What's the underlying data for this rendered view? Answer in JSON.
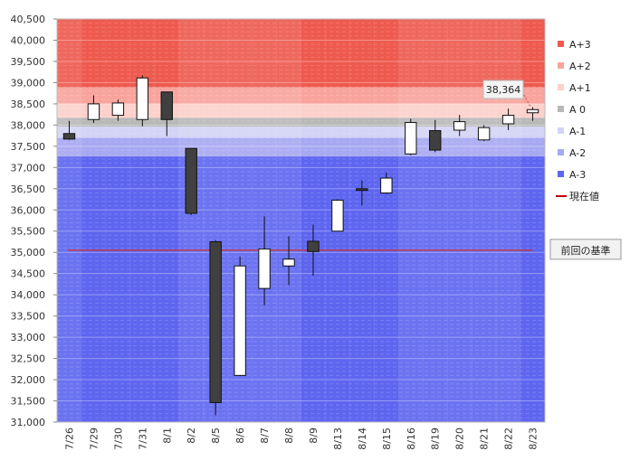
{
  "chart_data": {
    "type": "candlestick",
    "ylim": [
      31000,
      40500
    ],
    "y_ticks": [
      31000,
      31500,
      32000,
      32500,
      33000,
      33500,
      34000,
      34500,
      35000,
      35500,
      36000,
      36500,
      37000,
      37500,
      38000,
      38500,
      39000,
      39500,
      40000,
      40500
    ],
    "y_tick_labels": [
      "31,000",
      "31,500",
      "32,000",
      "32,500",
      "33,000",
      "33,500",
      "34,000",
      "34,500",
      "35,000",
      "35,500",
      "36,000",
      "36,500",
      "37,000",
      "37,500",
      "38,000",
      "38,500",
      "39,000",
      "39,500",
      "40,000",
      "40,500"
    ],
    "categories": [
      "7/26",
      "7/29",
      "7/30",
      "7/31",
      "8/1",
      "8/2",
      "8/5",
      "8/6",
      "8/7",
      "8/8",
      "8/9",
      "8/13",
      "8/14",
      "8/15",
      "8/16",
      "8/19",
      "8/20",
      "8/21",
      "8/22",
      "8/23"
    ],
    "candles": [
      {
        "open": 37800,
        "high": 38100,
        "low": 37650,
        "close": 37670
      },
      {
        "open": 38130,
        "high": 38700,
        "low": 38050,
        "close": 38500
      },
      {
        "open": 38230,
        "high": 38600,
        "low": 38100,
        "close": 38520
      },
      {
        "open": 38130,
        "high": 39170,
        "low": 37970,
        "close": 39110
      },
      {
        "open": 38780,
        "high": 38790,
        "low": 37740,
        "close": 38130
      },
      {
        "open": 37450,
        "high": 37450,
        "low": 35880,
        "close": 35920
      },
      {
        "open": 35250,
        "high": 35290,
        "low": 31160,
        "close": 31460
      },
      {
        "open": 32100,
        "high": 34900,
        "low": 32080,
        "close": 34680
      },
      {
        "open": 34150,
        "high": 35850,
        "low": 33750,
        "close": 35080
      },
      {
        "open": 34680,
        "high": 35380,
        "low": 34230,
        "close": 34840
      },
      {
        "open": 35260,
        "high": 35650,
        "low": 34450,
        "close": 35020
      },
      {
        "open": 35500,
        "high": 36250,
        "low": 35500,
        "close": 36230
      },
      {
        "open": 36500,
        "high": 36700,
        "low": 36100,
        "close": 36460
      },
      {
        "open": 36400,
        "high": 36880,
        "low": 36380,
        "close": 36750
      },
      {
        "open": 37320,
        "high": 38150,
        "low": 37290,
        "close": 38060
      },
      {
        "open": 37870,
        "high": 38120,
        "low": 37360,
        "close": 37410
      },
      {
        "open": 37880,
        "high": 38240,
        "low": 37740,
        "close": 38080
      },
      {
        "open": 37650,
        "high": 38000,
        "low": 37620,
        "close": 37940
      },
      {
        "open": 38030,
        "high": 38390,
        "low": 37880,
        "close": 38230
      },
      {
        "open": 38290,
        "high": 38420,
        "low": 38100,
        "close": 38364
      }
    ],
    "zones": [
      {
        "name": "A+3",
        "from": 38890,
        "to": 40500,
        "color": "#ee5a4f"
      },
      {
        "name": "A+2",
        "from": 38500,
        "to": 38890,
        "color": "#f8a49d"
      },
      {
        "name": "A+1",
        "from": 38170,
        "to": 38500,
        "color": "#fcd0cb"
      },
      {
        "name": "A 0",
        "from": 37960,
        "to": 38170,
        "color": "#b8b8b8"
      },
      {
        "name": "A-1",
        "from": 37700,
        "to": 37960,
        "color": "#d3d4f6"
      },
      {
        "name": "A-2",
        "from": 37260,
        "to": 37700,
        "color": "#a6a8f2"
      },
      {
        "name": "A-3",
        "from": 31000,
        "to": 37260,
        "color": "#5e66f0"
      }
    ],
    "current_value": {
      "label": "現在値",
      "color": "#c00000"
    },
    "reference_line": {
      "label": "前回の基準",
      "value": 35050,
      "color": "#d03030"
    },
    "callout": {
      "text": "38,364",
      "category_index": 19,
      "value": 38364
    },
    "legend": [
      {
        "name": "A+3",
        "color": "#ee5a4f",
        "type": "square"
      },
      {
        "name": "A+2",
        "color": "#f8a49d",
        "type": "square"
      },
      {
        "name": "A+1",
        "color": "#fcd0cb",
        "type": "square"
      },
      {
        "name": "A 0",
        "color": "#b8b8b8",
        "type": "square"
      },
      {
        "name": "A-1",
        "color": "#d3d4f6",
        "type": "square"
      },
      {
        "name": "A-2",
        "color": "#a6a8f2",
        "type": "square"
      },
      {
        "name": "A-3",
        "color": "#5e66f0",
        "type": "square"
      },
      {
        "name": "現在値",
        "color": "#c00000",
        "type": "line"
      }
    ],
    "legend_position": "right",
    "grid": true,
    "colors": {
      "up_body": "#ffffff",
      "down_body": "#404040",
      "candle_outline": "#111111",
      "plot_border": "#bbbbbb"
    }
  }
}
